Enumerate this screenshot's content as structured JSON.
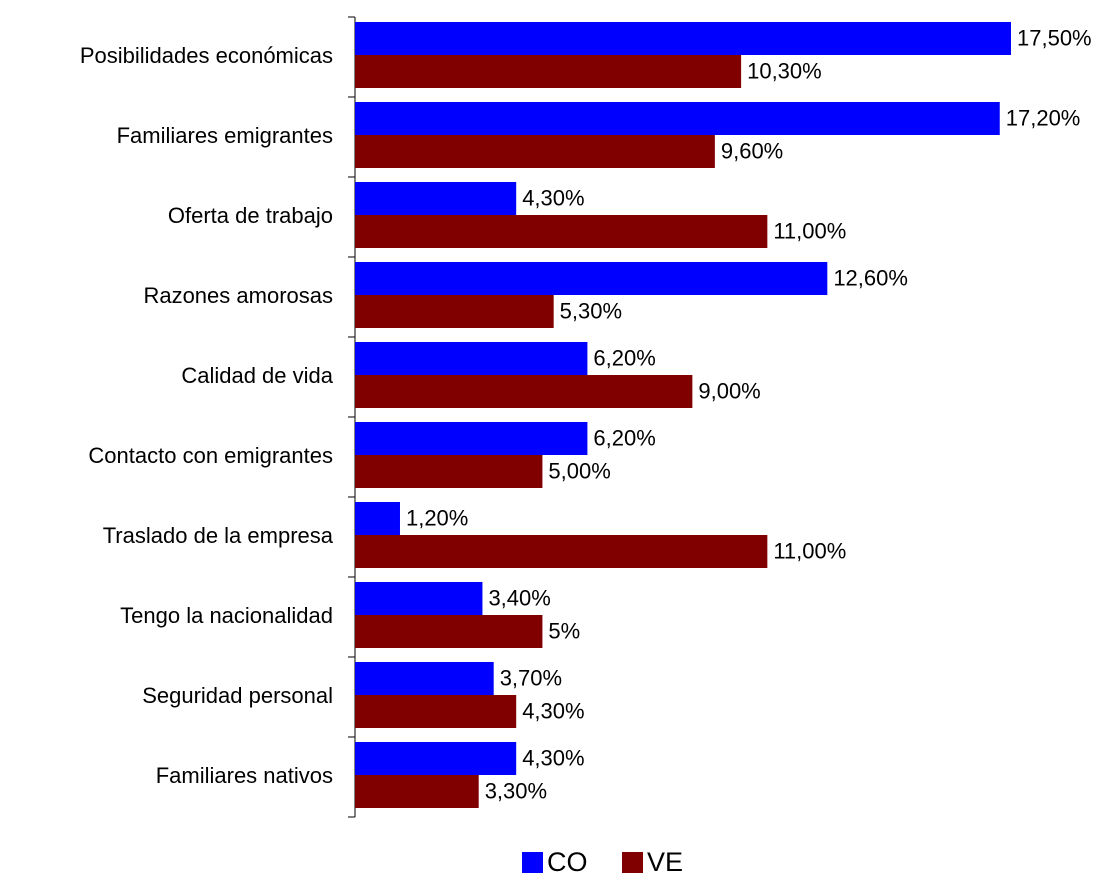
{
  "chart_data": {
    "type": "bar",
    "orientation": "horizontal",
    "categories": [
      "Posibilidades económicas",
      "Familiares emigrantes",
      "Oferta de trabajo",
      "Razones amorosas",
      "Calidad de vida",
      "Contacto con emigrantes",
      "Traslado de la empresa",
      "Tengo la nacionalidad",
      "Seguridad personal",
      "Familiares nativos"
    ],
    "series": [
      {
        "name": "CO",
        "color": "#0000ff",
        "values": [
          17.5,
          17.2,
          4.3,
          12.6,
          6.2,
          6.2,
          1.2,
          3.4,
          3.7,
          4.3
        ],
        "value_labels": [
          "17,50%",
          "17,20%",
          "4,30%",
          "12,60%",
          "6,20%",
          "6,20%",
          "1,20%",
          "3,40%",
          "3,70%",
          "4,30%"
        ]
      },
      {
        "name": "VE",
        "color": "#800000",
        "values": [
          10.3,
          9.6,
          11,
          5.3,
          9,
          5,
          11,
          5,
          4.3,
          3.3
        ],
        "value_labels": [
          "10,30%",
          "9,60%",
          "11,00%",
          "5,30%",
          "9,00%",
          "5,00%",
          "11,00%",
          "5%",
          "4,30%",
          "3,30%"
        ]
      }
    ],
    "legend": "bottom"
  }
}
